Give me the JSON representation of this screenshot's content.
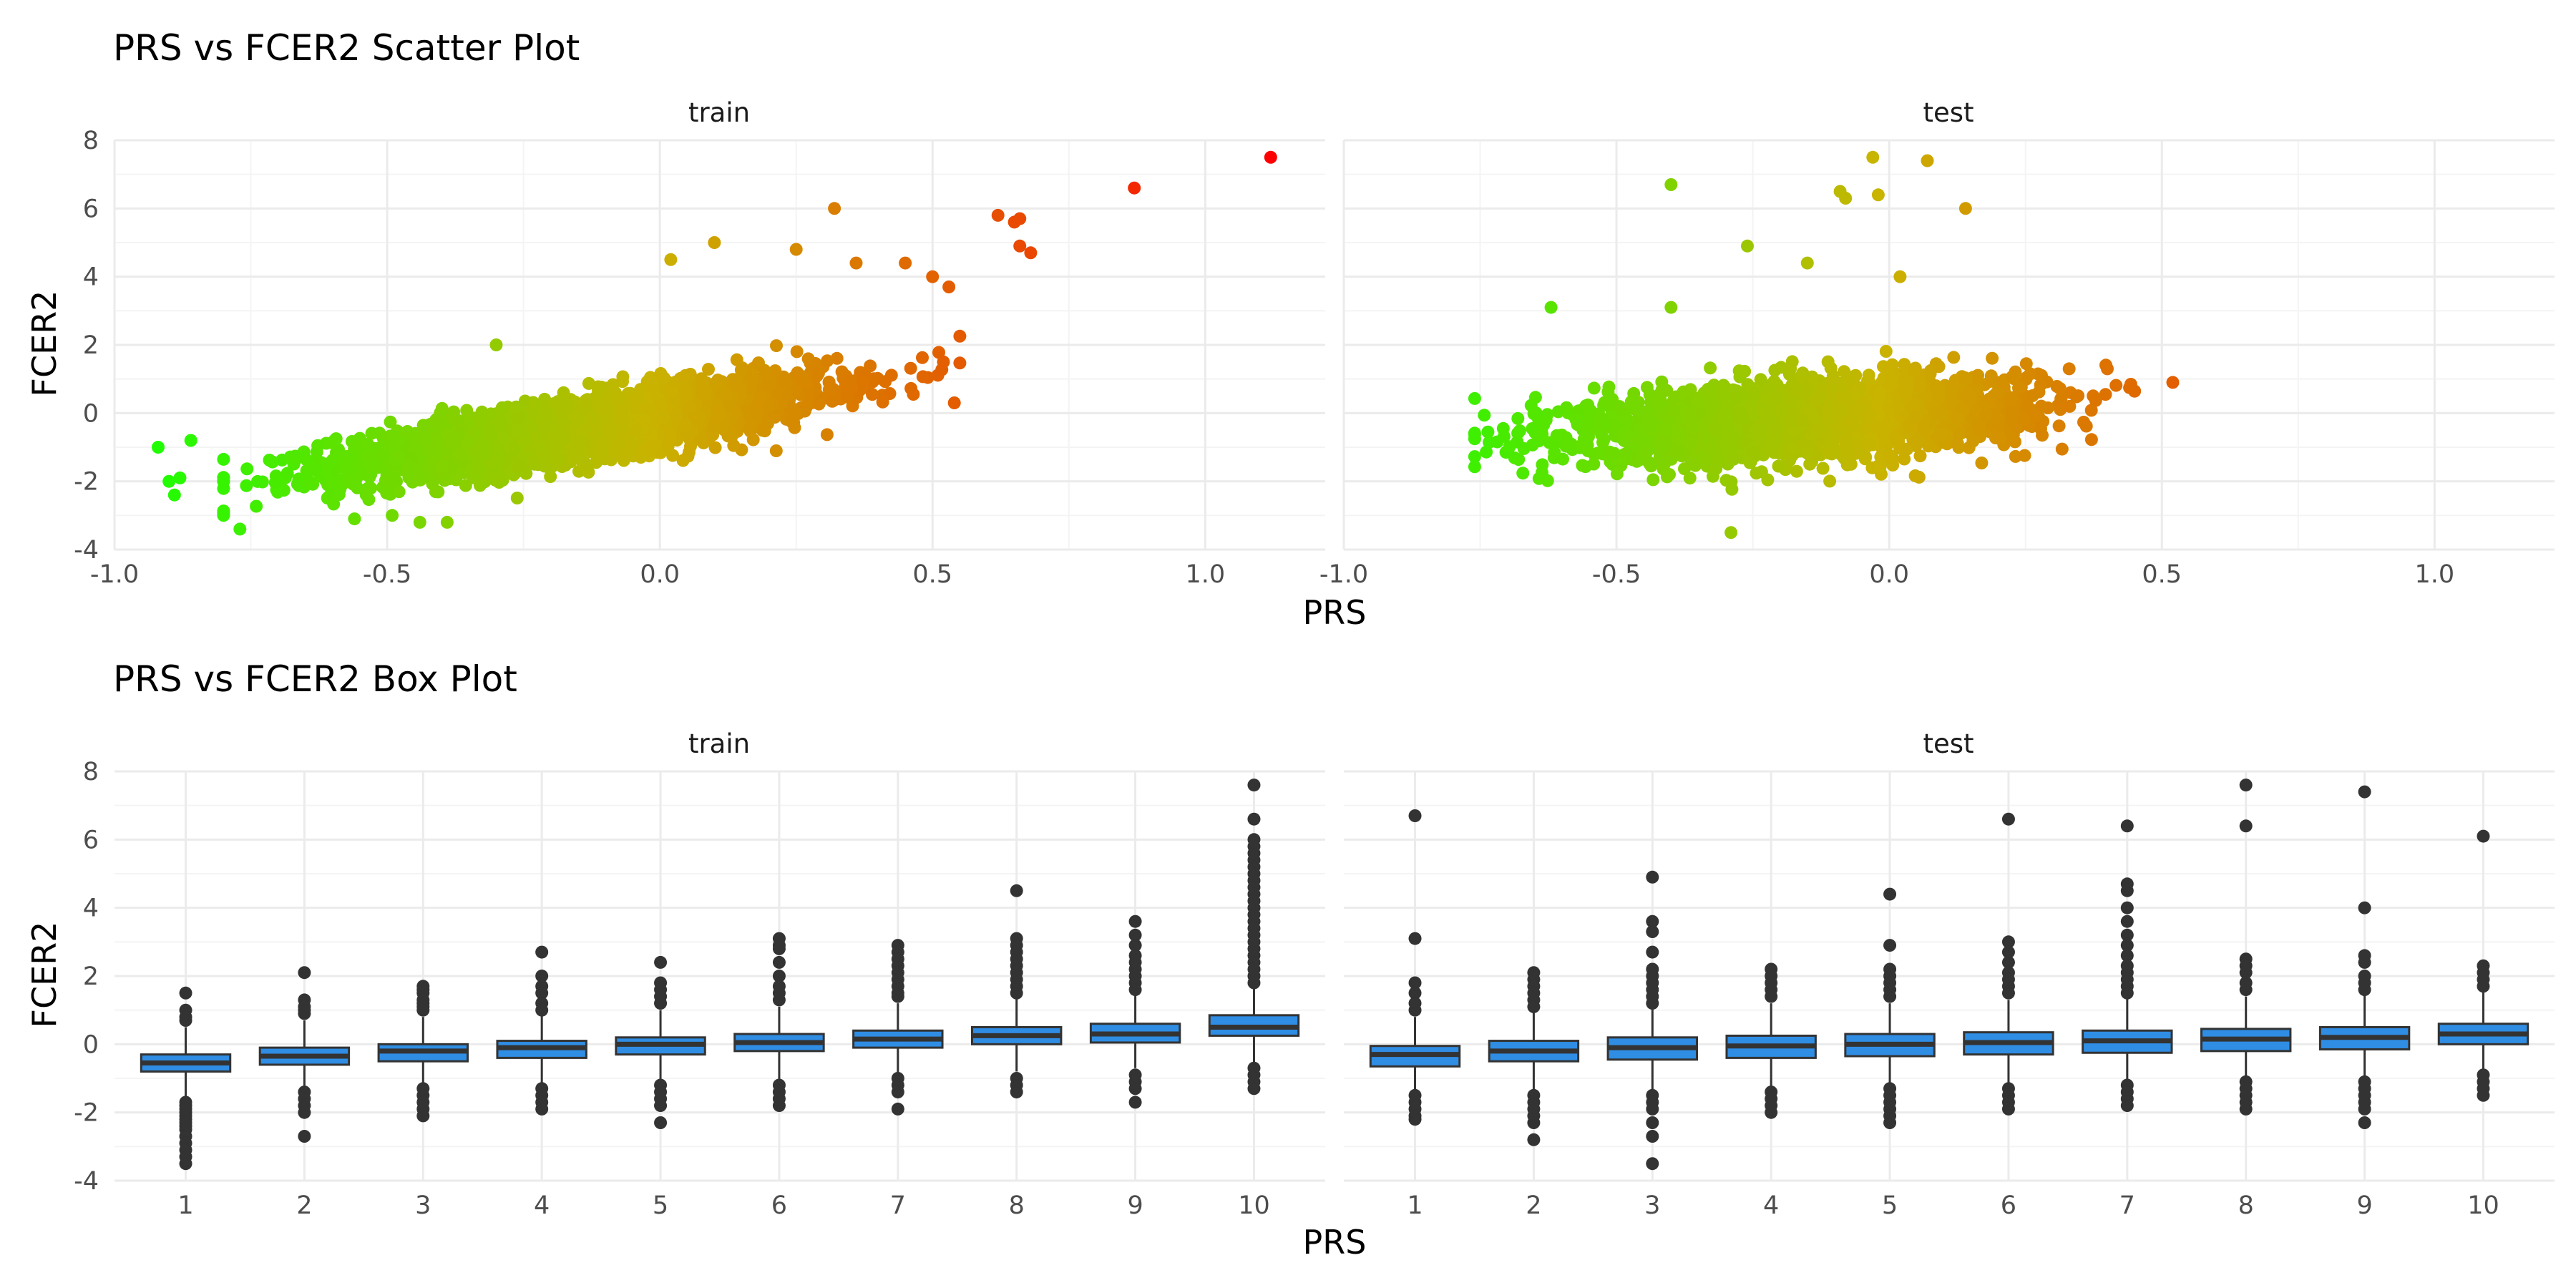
{
  "colors": {
    "grid_major": "#ebebeb",
    "grid_minor": "#f4f4f4",
    "box_fill": "#2f8de4",
    "box_line": "#333333",
    "point_low": "#1aff00",
    "point_mid": "#c9b400",
    "point_high": "#ff0000"
  },
  "chart_data": [
    {
      "type": "scatter",
      "title": "PRS vs FCER2 Scatter Plot",
      "xlabel": "PRS",
      "ylabel": "FCER2",
      "xlim": [
        -1.0,
        1.22
      ],
      "ylim": [
        -4,
        8
      ],
      "x_ticks": [
        "-1.0",
        "-0.5",
        "0.0",
        "0.5",
        "1.0"
      ],
      "y_ticks": [
        "-4",
        "-2",
        "0",
        "2",
        "4",
        "6",
        "8"
      ],
      "color_scale": "gradient by PRS: green (low) to orange/red (high)",
      "grid": true,
      "panels": [
        {
          "name": "train",
          "bulk": {
            "n": 3000,
            "x_mean": -0.15,
            "x_sd": 0.22,
            "x_range": [
              -0.8,
              0.55
            ],
            "slope": 2.5,
            "intercept": -0.1,
            "noise_sd": 0.45
          },
          "outliers": [
            {
              "x": -0.92,
              "y": -1.0
            },
            {
              "x": -0.9,
              "y": -2.0
            },
            {
              "x": -0.89,
              "y": -2.4
            },
            {
              "x": -0.88,
              "y": -1.9
            },
            {
              "x": -0.86,
              "y": -0.8
            },
            {
              "x": -0.77,
              "y": -3.4
            },
            {
              "x": -0.56,
              "y": -3.1
            },
            {
              "x": -0.44,
              "y": -3.2
            },
            {
              "x": -0.39,
              "y": -3.2
            },
            {
              "x": -0.3,
              "y": 2.0
            },
            {
              "x": 0.02,
              "y": 4.5
            },
            {
              "x": 0.1,
              "y": 5.0
            },
            {
              "x": 0.25,
              "y": 4.8
            },
            {
              "x": 0.32,
              "y": 6.0
            },
            {
              "x": 0.36,
              "y": 4.4
            },
            {
              "x": 0.45,
              "y": 4.4
            },
            {
              "x": 0.5,
              "y": 4.0
            },
            {
              "x": 0.53,
              "y": 3.7
            },
            {
              "x": 0.52,
              "y": 1.5
            },
            {
              "x": 0.54,
              "y": 0.3
            },
            {
              "x": 0.62,
              "y": 5.8
            },
            {
              "x": 0.65,
              "y": 5.6
            },
            {
              "x": 0.66,
              "y": 5.7
            },
            {
              "x": 0.66,
              "y": 4.9
            },
            {
              "x": 0.68,
              "y": 4.7
            },
            {
              "x": 0.87,
              "y": 6.6
            },
            {
              "x": 1.12,
              "y": 7.5
            }
          ]
        },
        {
          "name": "test",
          "bulk": {
            "n": 2600,
            "x_mean": -0.15,
            "x_sd": 0.2,
            "x_range": [
              -0.76,
              0.45
            ],
            "slope": 1.0,
            "intercept": 0.0,
            "noise_sd": 0.55
          },
          "outliers": [
            {
              "x": -0.62,
              "y": 3.1
            },
            {
              "x": -0.4,
              "y": 6.7
            },
            {
              "x": -0.4,
              "y": 3.1
            },
            {
              "x": -0.29,
              "y": -3.5
            },
            {
              "x": -0.26,
              "y": 4.9
            },
            {
              "x": -0.15,
              "y": 4.4
            },
            {
              "x": -0.09,
              "y": 6.5
            },
            {
              "x": -0.08,
              "y": 6.3
            },
            {
              "x": -0.03,
              "y": 7.5
            },
            {
              "x": -0.02,
              "y": 6.4
            },
            {
              "x": 0.02,
              "y": 4.0
            },
            {
              "x": 0.07,
              "y": 7.4
            },
            {
              "x": 0.14,
              "y": 6.0
            },
            {
              "x": 0.33,
              "y": 1.3
            },
            {
              "x": 0.4,
              "y": 1.3
            },
            {
              "x": 0.52,
              "y": 0.9
            }
          ]
        }
      ]
    },
    {
      "type": "box",
      "title": "PRS vs FCER2 Box Plot",
      "xlabel": "PRS",
      "ylabel": "FCER2",
      "ylim": [
        -4,
        8
      ],
      "y_ticks": [
        "-4",
        "-2",
        "0",
        "2",
        "4",
        "6",
        "8"
      ],
      "categories": [
        "1",
        "2",
        "3",
        "4",
        "5",
        "6",
        "7",
        "8",
        "9",
        "10"
      ],
      "grid": true,
      "panels": [
        {
          "name": "train",
          "boxes": [
            {
              "q1": -0.8,
              "median": -0.55,
              "q3": -0.3,
              "whisker_low": -1.6,
              "whisker_high": 0.5,
              "outliers": [
                1.5,
                1.0,
                0.8,
                0.7,
                -1.7,
                -1.8,
                -1.9,
                -2.0,
                -2.1,
                -2.2,
                -2.3,
                -2.4,
                -2.5,
                -2.7,
                -2.9,
                -3.1,
                -3.3,
                -3.5
              ]
            },
            {
              "q1": -0.6,
              "median": -0.35,
              "q3": -0.1,
              "whisker_low": -1.3,
              "whisker_high": 0.7,
              "outliers": [
                2.1,
                1.3,
                1.1,
                1.0,
                0.9,
                -1.4,
                -1.6,
                -1.8,
                -2.0,
                -2.7
              ]
            },
            {
              "q1": -0.5,
              "median": -0.2,
              "q3": 0.0,
              "whisker_low": -1.2,
              "whisker_high": 0.8,
              "outliers": [
                1.7,
                1.6,
                1.5,
                1.3,
                1.2,
                1.1,
                1.0,
                -1.3,
                -1.5,
                -1.7,
                -1.9,
                -2.1
              ]
            },
            {
              "q1": -0.4,
              "median": -0.1,
              "q3": 0.1,
              "whisker_low": -1.2,
              "whisker_high": 0.9,
              "outliers": [
                2.7,
                2.0,
                1.7,
                1.5,
                1.2,
                1.0,
                -1.3,
                -1.5,
                -1.7,
                -1.9
              ]
            },
            {
              "q1": -0.3,
              "median": 0.0,
              "q3": 0.2,
              "whisker_low": -1.1,
              "whisker_high": 1.0,
              "outliers": [
                2.4,
                1.8,
                1.6,
                1.4,
                1.2,
                -1.2,
                -1.4,
                -1.6,
                -1.8,
                -2.3
              ]
            },
            {
              "q1": -0.2,
              "median": 0.05,
              "q3": 0.3,
              "whisker_low": -1.1,
              "whisker_high": 1.1,
              "outliers": [
                3.1,
                2.9,
                2.8,
                2.4,
                2.0,
                1.7,
                1.5,
                1.3,
                -1.2,
                -1.4,
                -1.6,
                -1.8
              ]
            },
            {
              "q1": -0.1,
              "median": 0.15,
              "q3": 0.4,
              "whisker_low": -0.9,
              "whisker_high": 1.2,
              "outliers": [
                2.9,
                2.7,
                2.5,
                2.3,
                2.1,
                1.9,
                1.7,
                1.5,
                1.4,
                -1.0,
                -1.2,
                -1.4,
                -1.9
              ]
            },
            {
              "q1": 0.0,
              "median": 0.25,
              "q3": 0.5,
              "whisker_low": -0.8,
              "whisker_high": 1.4,
              "outliers": [
                4.5,
                3.1,
                2.9,
                2.7,
                2.5,
                2.3,
                2.1,
                1.9,
                1.7,
                1.5,
                -1.0,
                -1.2,
                -1.4
              ]
            },
            {
              "q1": 0.05,
              "median": 0.3,
              "q3": 0.6,
              "whisker_low": -0.7,
              "whisker_high": 1.5,
              "outliers": [
                3.6,
                3.2,
                2.9,
                2.6,
                2.4,
                2.2,
                2.0,
                1.8,
                1.6,
                -0.9,
                -1.1,
                -1.3,
                -1.7
              ]
            },
            {
              "q1": 0.25,
              "median": 0.5,
              "q3": 0.85,
              "whisker_low": -0.6,
              "whisker_high": 1.7,
              "outliers": [
                7.6,
                6.6,
                6.0,
                5.8,
                5.6,
                5.4,
                5.2,
                5.0,
                4.8,
                4.6,
                4.4,
                4.2,
                4.0,
                3.8,
                3.6,
                3.4,
                3.2,
                3.0,
                2.8,
                2.6,
                2.4,
                2.2,
                2.0,
                1.8,
                -0.7,
                -0.9,
                -1.1,
                -1.3
              ]
            }
          ]
        },
        {
          "name": "test",
          "boxes": [
            {
              "q1": -0.65,
              "median": -0.3,
              "q3": -0.05,
              "whisker_low": -1.5,
              "whisker_high": 0.8,
              "outliers": [
                6.7,
                3.1,
                1.8,
                1.5,
                1.2,
                1.0,
                -1.5,
                -1.7,
                -1.9,
                -2.1,
                -2.2
              ]
            },
            {
              "q1": -0.5,
              "median": -0.2,
              "q3": 0.1,
              "whisker_low": -1.4,
              "whisker_high": 1.0,
              "outliers": [
                2.1,
                1.9,
                1.7,
                1.5,
                1.3,
                1.1,
                -1.5,
                -1.7,
                -1.9,
                -2.1,
                -2.3,
                -2.8
              ]
            },
            {
              "q1": -0.45,
              "median": -0.1,
              "q3": 0.2,
              "whisker_low": -1.4,
              "whisker_high": 1.1,
              "outliers": [
                4.9,
                3.6,
                3.3,
                2.7,
                2.2,
                2.0,
                1.8,
                1.6,
                1.4,
                1.2,
                -1.5,
                -1.7,
                -1.9,
                -2.3,
                -2.7,
                -3.5
              ]
            },
            {
              "q1": -0.4,
              "median": -0.05,
              "q3": 0.25,
              "whisker_low": -1.3,
              "whisker_high": 1.2,
              "outliers": [
                2.2,
                2.0,
                1.8,
                1.6,
                1.4,
                -1.4,
                -1.6,
                -1.8,
                -2.0
              ]
            },
            {
              "q1": -0.35,
              "median": 0.0,
              "q3": 0.3,
              "whisker_low": -1.2,
              "whisker_high": 1.2,
              "outliers": [
                4.4,
                2.9,
                2.2,
                2.0,
                1.8,
                1.6,
                1.4,
                -1.3,
                -1.5,
                -1.7,
                -1.9,
                -2.1,
                -2.3
              ]
            },
            {
              "q1": -0.3,
              "median": 0.05,
              "q3": 0.35,
              "whisker_low": -1.2,
              "whisker_high": 1.3,
              "outliers": [
                6.6,
                3.0,
                2.7,
                2.4,
                2.1,
                1.9,
                1.7,
                1.5,
                -1.3,
                -1.5,
                -1.7,
                -1.9
              ]
            },
            {
              "q1": -0.25,
              "median": 0.1,
              "q3": 0.4,
              "whisker_low": -1.1,
              "whisker_high": 1.4,
              "outliers": [
                6.4,
                4.7,
                4.5,
                4.0,
                3.6,
                3.2,
                2.9,
                2.6,
                2.3,
                2.1,
                1.9,
                1.7,
                1.5,
                -1.2,
                -1.4,
                -1.6,
                -1.8
              ]
            },
            {
              "q1": -0.2,
              "median": 0.15,
              "q3": 0.45,
              "whisker_low": -1.0,
              "whisker_high": 1.4,
              "outliers": [
                7.6,
                6.4,
                2.5,
                2.3,
                2.1,
                1.8,
                1.6,
                -1.1,
                -1.3,
                -1.5,
                -1.7,
                -1.9
              ]
            },
            {
              "q1": -0.15,
              "median": 0.2,
              "q3": 0.5,
              "whisker_low": -1.0,
              "whisker_high": 1.5,
              "outliers": [
                7.4,
                4.0,
                2.6,
                2.4,
                2.0,
                1.8,
                1.6,
                -1.1,
                -1.3,
                -1.5,
                -1.7,
                -1.9,
                -2.3
              ]
            },
            {
              "q1": 0.0,
              "median": 0.3,
              "q3": 0.6,
              "whisker_low": -0.8,
              "whisker_high": 1.6,
              "outliers": [
                6.1,
                2.3,
                2.1,
                1.9,
                1.7,
                -0.9,
                -1.1,
                -1.3,
                -1.5
              ]
            }
          ]
        }
      ]
    }
  ]
}
